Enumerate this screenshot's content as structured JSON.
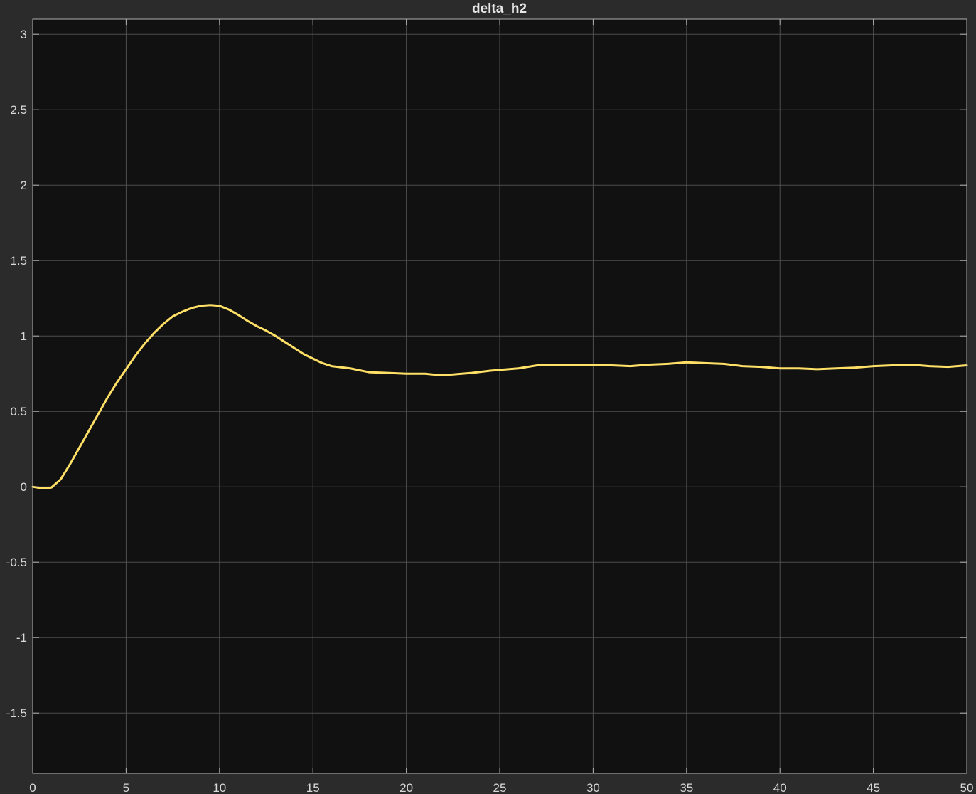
{
  "chart_data": {
    "type": "line",
    "title": "delta_h2",
    "xlabel": "",
    "ylabel": "",
    "xlim": [
      0,
      50
    ],
    "ylim": [
      -1.9,
      3.1
    ],
    "x_ticks": [
      0,
      5,
      10,
      15,
      20,
      25,
      30,
      35,
      40,
      45,
      50
    ],
    "y_ticks": [
      -1.5,
      -1,
      -0.5,
      0,
      0.5,
      1,
      1.5,
      2,
      2.5,
      3
    ],
    "x_tick_labels": [
      "0",
      "5",
      "10",
      "15",
      "20",
      "25",
      "30",
      "35",
      "40",
      "45",
      "50"
    ],
    "y_tick_labels": [
      "-1.5",
      "-1",
      "-0.5",
      "0",
      "0.5",
      "1",
      "1.5",
      "2",
      "2.5",
      "3"
    ],
    "grid": true,
    "series": [
      {
        "color": "#ffe066",
        "x": [
          0,
          0.5,
          1,
          1.5,
          2,
          2.5,
          3,
          3.5,
          4,
          4.5,
          5,
          5.5,
          6,
          6.5,
          7,
          7.5,
          8,
          8.5,
          9,
          9.5,
          10,
          10.5,
          11,
          11.5,
          12,
          12.5,
          13,
          13.5,
          14,
          14.5,
          15,
          15.5,
          16,
          17,
          18,
          19,
          20,
          21,
          21.8,
          22.5,
          23.5,
          24.5,
          25,
          26,
          27,
          28,
          29,
          30,
          31,
          32,
          33,
          34,
          35,
          36,
          37,
          38,
          39,
          40,
          41,
          42,
          43,
          44,
          45,
          46,
          47,
          48,
          49,
          50
        ],
        "y": [
          0,
          -0.01,
          -0.005,
          0.05,
          0.15,
          0.26,
          0.37,
          0.48,
          0.59,
          0.69,
          0.78,
          0.87,
          0.95,
          1.02,
          1.08,
          1.13,
          1.16,
          1.185,
          1.2,
          1.205,
          1.2,
          1.175,
          1.14,
          1.1,
          1.065,
          1.035,
          1.0,
          0.96,
          0.92,
          0.88,
          0.85,
          0.82,
          0.8,
          0.785,
          0.76,
          0.755,
          0.75,
          0.75,
          0.74,
          0.745,
          0.755,
          0.77,
          0.775,
          0.785,
          0.805,
          0.805,
          0.805,
          0.81,
          0.805,
          0.8,
          0.81,
          0.815,
          0.825,
          0.82,
          0.815,
          0.8,
          0.795,
          0.785,
          0.785,
          0.78,
          0.785,
          0.79,
          0.8,
          0.805,
          0.81,
          0.8,
          0.795,
          0.805
        ]
      }
    ]
  },
  "colors": {
    "figure_background": "#2b2b2b",
    "axes_background": "#111111",
    "grid": "#4e4e4e",
    "axis_line": "#b0b0b0",
    "text": "#d9d9d9"
  }
}
